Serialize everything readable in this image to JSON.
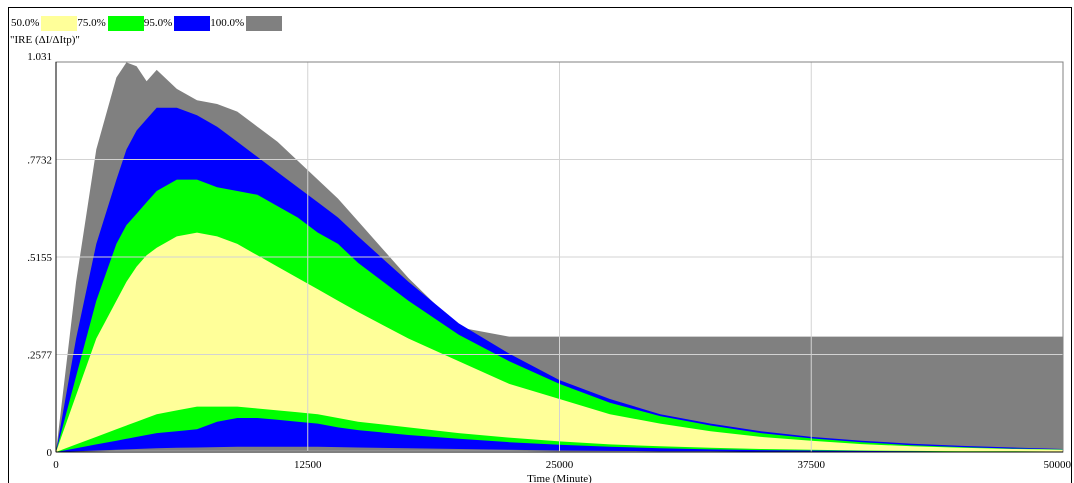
{
  "chart_data": {
    "type": "area",
    "title": "",
    "ylabel": "\"IRE (ΔI/ΔItp)\"",
    "xlabel": "Time (Minute)",
    "xlim": [
      0,
      50000
    ],
    "ylim": [
      0,
      1.031
    ],
    "xticks": [
      0,
      12500,
      25000,
      37500,
      50000
    ],
    "xtick_labels": [
      "0",
      "12500",
      "25000",
      "37500",
      "50000"
    ],
    "yticks": [
      0,
      0.2577,
      0.5155,
      0.7732,
      1.031
    ],
    "ytick_labels": [
      "0",
      ".2577",
      ".5155",
      ".7732",
      "1.031"
    ],
    "grid": true,
    "legend": [
      {
        "label": "50.0%",
        "color": "#ffff99"
      },
      {
        "label": "75.0%",
        "color": "#00ff00"
      },
      {
        "label": "95.0%",
        "color": "#0000ff"
      },
      {
        "label": "100.0%",
        "color": "#808080"
      }
    ],
    "x": [
      0,
      1000,
      2000,
      3000,
      3500,
      4000,
      4500,
      5000,
      6000,
      7000,
      8000,
      9000,
      10000,
      11000,
      12000,
      13000,
      14000,
      15000,
      17500,
      20000,
      22500,
      25000,
      27500,
      30000,
      32500,
      35000,
      37500,
      40000,
      42500,
      45000,
      47500,
      50000
    ],
    "bands": [
      {
        "fill": "#808080",
        "upper": [
          0,
          0.45,
          0.8,
          0.99,
          1.03,
          1.02,
          0.98,
          1.01,
          0.96,
          0.93,
          0.92,
          0.9,
          0.86,
          0.82,
          0.77,
          0.72,
          0.67,
          0.61,
          0.46,
          0.33,
          0.305,
          0.305,
          0.305,
          0.305,
          0.305,
          0.305,
          0.305,
          0.305,
          0.305,
          0.305,
          0.305,
          0.305
        ],
        "lower": [
          0,
          0.001,
          0.002,
          0.003,
          0.003,
          0.003,
          0.003,
          0.003,
          0.003,
          0.003,
          0.003,
          0.003,
          0.003,
          0.003,
          0.003,
          0.003,
          0.003,
          0.003,
          0.003,
          0.003,
          0.003,
          0.002,
          0.002,
          0.002,
          0.002,
          0.002,
          0.002,
          0.002,
          0.002,
          0.002,
          0.002,
          0.002
        ]
      },
      {
        "fill": "#0000ff",
        "upper": [
          0,
          0.3,
          0.55,
          0.72,
          0.8,
          0.85,
          0.88,
          0.91,
          0.91,
          0.89,
          0.86,
          0.82,
          0.78,
          0.74,
          0.7,
          0.66,
          0.62,
          0.57,
          0.45,
          0.34,
          0.26,
          0.19,
          0.14,
          0.1,
          0.075,
          0.055,
          0.04,
          0.03,
          0.022,
          0.016,
          0.012,
          0.008
        ],
        "lower": [
          0,
          0.002,
          0.004,
          0.006,
          0.007,
          0.008,
          0.009,
          0.01,
          0.011,
          0.012,
          0.013,
          0.014,
          0.014,
          0.014,
          0.014,
          0.014,
          0.013,
          0.012,
          0.01,
          0.008,
          0.006,
          0.004,
          0.003,
          0.002,
          0.002,
          0.001,
          0.001,
          0.001,
          0.001,
          0.001,
          0.001,
          0.001
        ]
      },
      {
        "fill": "#00ff00",
        "upper": [
          0,
          0.2,
          0.4,
          0.55,
          0.6,
          0.63,
          0.66,
          0.69,
          0.72,
          0.72,
          0.7,
          0.69,
          0.68,
          0.65,
          0.62,
          0.58,
          0.55,
          0.5,
          0.4,
          0.31,
          0.24,
          0.18,
          0.13,
          0.095,
          0.07,
          0.05,
          0.036,
          0.026,
          0.018,
          0.013,
          0.009,
          0.007
        ],
        "lower": [
          0,
          0.01,
          0.02,
          0.03,
          0.035,
          0.04,
          0.045,
          0.05,
          0.055,
          0.06,
          0.08,
          0.09,
          0.09,
          0.085,
          0.08,
          0.075,
          0.065,
          0.058,
          0.045,
          0.035,
          0.026,
          0.019,
          0.014,
          0.01,
          0.007,
          0.005,
          0.004,
          0.003,
          0.002,
          0.001,
          0.001,
          0.001
        ]
      },
      {
        "fill": "#ffff99",
        "upper": [
          0,
          0.15,
          0.3,
          0.4,
          0.45,
          0.49,
          0.52,
          0.54,
          0.57,
          0.58,
          0.57,
          0.55,
          0.52,
          0.49,
          0.46,
          0.43,
          0.4,
          0.37,
          0.3,
          0.24,
          0.18,
          0.14,
          0.1,
          0.075,
          0.055,
          0.04,
          0.03,
          0.021,
          0.015,
          0.011,
          0.008,
          0.006
        ],
        "lower": [
          0,
          0.02,
          0.04,
          0.06,
          0.07,
          0.08,
          0.09,
          0.1,
          0.11,
          0.12,
          0.12,
          0.12,
          0.115,
          0.11,
          0.105,
          0.1,
          0.09,
          0.08,
          0.065,
          0.05,
          0.038,
          0.028,
          0.02,
          0.015,
          0.011,
          0.008,
          0.006,
          0.004,
          0.003,
          0.002,
          0.002,
          0.001
        ]
      }
    ]
  }
}
